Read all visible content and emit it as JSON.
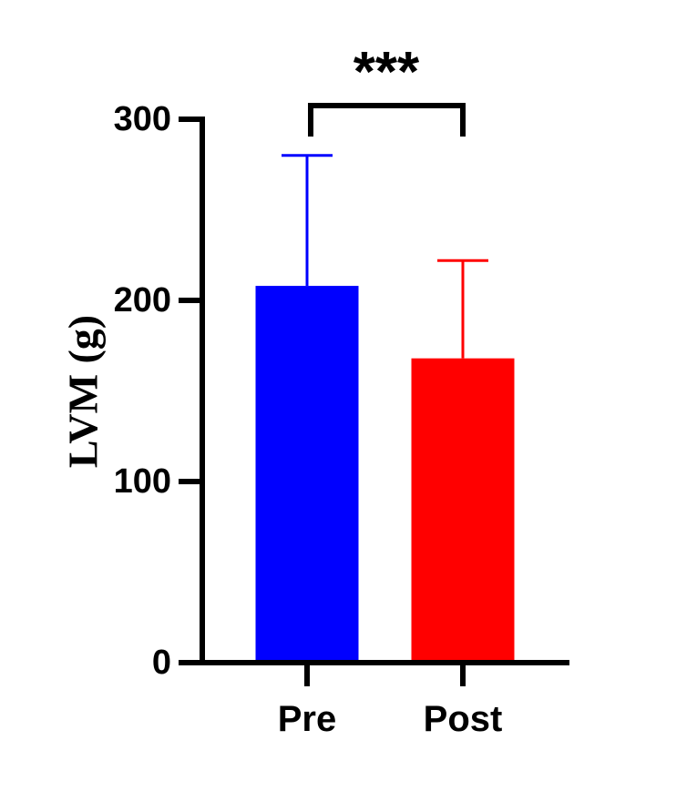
{
  "chart_data": {
    "type": "bar",
    "categories": [
      "Pre",
      "Post"
    ],
    "values": [
      208,
      168
    ],
    "error_upper": [
      280,
      222
    ],
    "colors": [
      "#0000ff",
      "#ff0000"
    ],
    "ylabel": "LVM (g)",
    "xlabel": "",
    "ylim": [
      0,
      300
    ],
    "yticks": [
      0,
      100,
      200,
      300
    ],
    "ytick_labels": [
      "0",
      "100",
      "200",
      "300"
    ],
    "significance": {
      "label": "***",
      "between": [
        "Pre",
        "Post"
      ]
    },
    "grid": false,
    "legend": "none"
  }
}
